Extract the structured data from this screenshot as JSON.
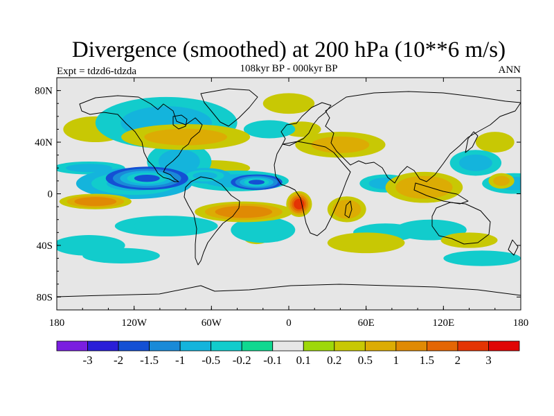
{
  "header": {
    "title": "Divergence (smoothed) at 200 hPa (10**6 m/s)",
    "subtitle": "108kyr BP - 000kyr BP",
    "left_label": "Expt = tdzd6-tdzda",
    "right_label": "ANN"
  },
  "chart_data": {
    "type": "heatmap",
    "title": "Divergence (smoothed) at 200 hPa (10**6 m/s)",
    "subtitle": "108kyr BP - 000kyr BP",
    "x_range": [
      -180,
      180
    ],
    "y_range": [
      -90,
      90
    ],
    "x_ticks": [
      {
        "value": -180,
        "label": "180"
      },
      {
        "value": -120,
        "label": "120W"
      },
      {
        "value": -60,
        "label": "60W"
      },
      {
        "value": 0,
        "label": "0"
      },
      {
        "value": 60,
        "label": "60E"
      },
      {
        "value": 120,
        "label": "120E"
      },
      {
        "value": 180,
        "label": "180"
      }
    ],
    "y_ticks": [
      {
        "value": 80,
        "label": "80N"
      },
      {
        "value": 40,
        "label": "40N"
      },
      {
        "value": 0,
        "label": "0"
      },
      {
        "value": -40,
        "label": "40S"
      },
      {
        "value": -80,
        "label": "80S"
      }
    ],
    "colorbar": {
      "levels": [
        "-3",
        "-2",
        "-1.5",
        "-1",
        "-0.5",
        "-0.2",
        "-0.1",
        "0.1",
        "0.2",
        "0.5",
        "1",
        "1.5",
        "2",
        "3"
      ],
      "colors": [
        "#7a1ee0",
        "#2a1ed8",
        "#1450d4",
        "#1a8ad8",
        "#14b4dc",
        "#12cccc",
        "#10d890",
        "#e6e6e6",
        "#9ed80a",
        "#c8c804",
        "#dcac04",
        "#e08a04",
        "#e46604",
        "#e43404",
        "#e00606"
      ]
    },
    "field_blobs": [
      {
        "lon": -110,
        "lat": 12,
        "rx": 32,
        "ry": 9,
        "v": -1.6
      },
      {
        "lon": -25,
        "lat": 9,
        "rx": 20,
        "ry": 6,
        "v": -1.6
      },
      {
        "lon": -65,
        "lat": 14,
        "rx": 20,
        "ry": 6,
        "v": -0.7
      },
      {
        "lon": -155,
        "lat": 20,
        "rx": 28,
        "ry": 5,
        "v": -0.5
      },
      {
        "lon": -120,
        "lat": 8,
        "rx": 45,
        "ry": 12,
        "v": -0.6
      },
      {
        "lon": -40,
        "lat": 10,
        "rx": 40,
        "ry": 8,
        "v": -0.5
      },
      {
        "lon": -85,
        "lat": 25,
        "rx": 25,
        "ry": 15,
        "v": -0.5
      },
      {
        "lon": -95,
        "lat": 55,
        "rx": 55,
        "ry": 20,
        "v": -0.5
      },
      {
        "lon": -15,
        "lat": 50,
        "rx": 20,
        "ry": 7,
        "v": -0.4
      },
      {
        "lon": 175,
        "lat": 8,
        "rx": 25,
        "ry": 8,
        "v": -0.5
      },
      {
        "lon": 75,
        "lat": 8,
        "rx": 20,
        "ry": 7,
        "v": -0.5
      },
      {
        "lon": 145,
        "lat": 24,
        "rx": 20,
        "ry": 10,
        "v": -0.5
      },
      {
        "lon": -20,
        "lat": -28,
        "rx": 25,
        "ry": 10,
        "v": -0.4
      },
      {
        "lon": -95,
        "lat": -25,
        "rx": 40,
        "ry": 8,
        "v": -0.4
      },
      {
        "lon": 110,
        "lat": -28,
        "rx": 28,
        "ry": 8,
        "v": -0.3
      },
      {
        "lon": 75,
        "lat": -30,
        "rx": 25,
        "ry": 7,
        "v": -0.3
      },
      {
        "lon": -155,
        "lat": -40,
        "rx": 28,
        "ry": 8,
        "v": -0.2
      },
      {
        "lon": -130,
        "lat": -48,
        "rx": 30,
        "ry": 6,
        "v": -0.2
      },
      {
        "lon": 150,
        "lat": -50,
        "rx": 30,
        "ry": 6,
        "v": -0.2
      },
      {
        "lon": -35,
        "lat": -14,
        "rx": 38,
        "ry": 8,
        "v": 1.4
      },
      {
        "lon": 8,
        "lat": -8,
        "rx": 10,
        "ry": 10,
        "v": 2.6
      },
      {
        "lon": -150,
        "lat": -6,
        "rx": 28,
        "ry": 6,
        "v": 1.1
      },
      {
        "lon": 45,
        "lat": -12,
        "rx": 15,
        "ry": 10,
        "v": 0.8
      },
      {
        "lon": -80,
        "lat": 44,
        "rx": 50,
        "ry": 10,
        "v": 0.5
      },
      {
        "lon": -150,
        "lat": 50,
        "rx": 25,
        "ry": 10,
        "v": 0.4
      },
      {
        "lon": -60,
        "lat": 20,
        "rx": 30,
        "ry": 6,
        "v": 0.4
      },
      {
        "lon": 40,
        "lat": 38,
        "rx": 35,
        "ry": 10,
        "v": 0.5
      },
      {
        "lon": 105,
        "lat": 5,
        "rx": 30,
        "ry": 12,
        "v": 0.6
      },
      {
        "lon": 60,
        "lat": -38,
        "rx": 30,
        "ry": 8,
        "v": 0.4
      },
      {
        "lon": 140,
        "lat": -36,
        "rx": 22,
        "ry": 6,
        "v": 0.4
      },
      {
        "lon": 160,
        "lat": 40,
        "rx": 15,
        "ry": 8,
        "v": 0.4
      },
      {
        "lon": 165,
        "lat": 10,
        "rx": 10,
        "ry": 6,
        "v": 0.5
      },
      {
        "lon": 10,
        "lat": 50,
        "rx": 15,
        "ry": 6,
        "v": 0.3
      },
      {
        "lon": -25,
        "lat": -34,
        "rx": 10,
        "ry": 5,
        "v": 0.2
      },
      {
        "lon": 0,
        "lat": 70,
        "rx": 20,
        "ry": 8,
        "v": 0.2
      }
    ]
  }
}
